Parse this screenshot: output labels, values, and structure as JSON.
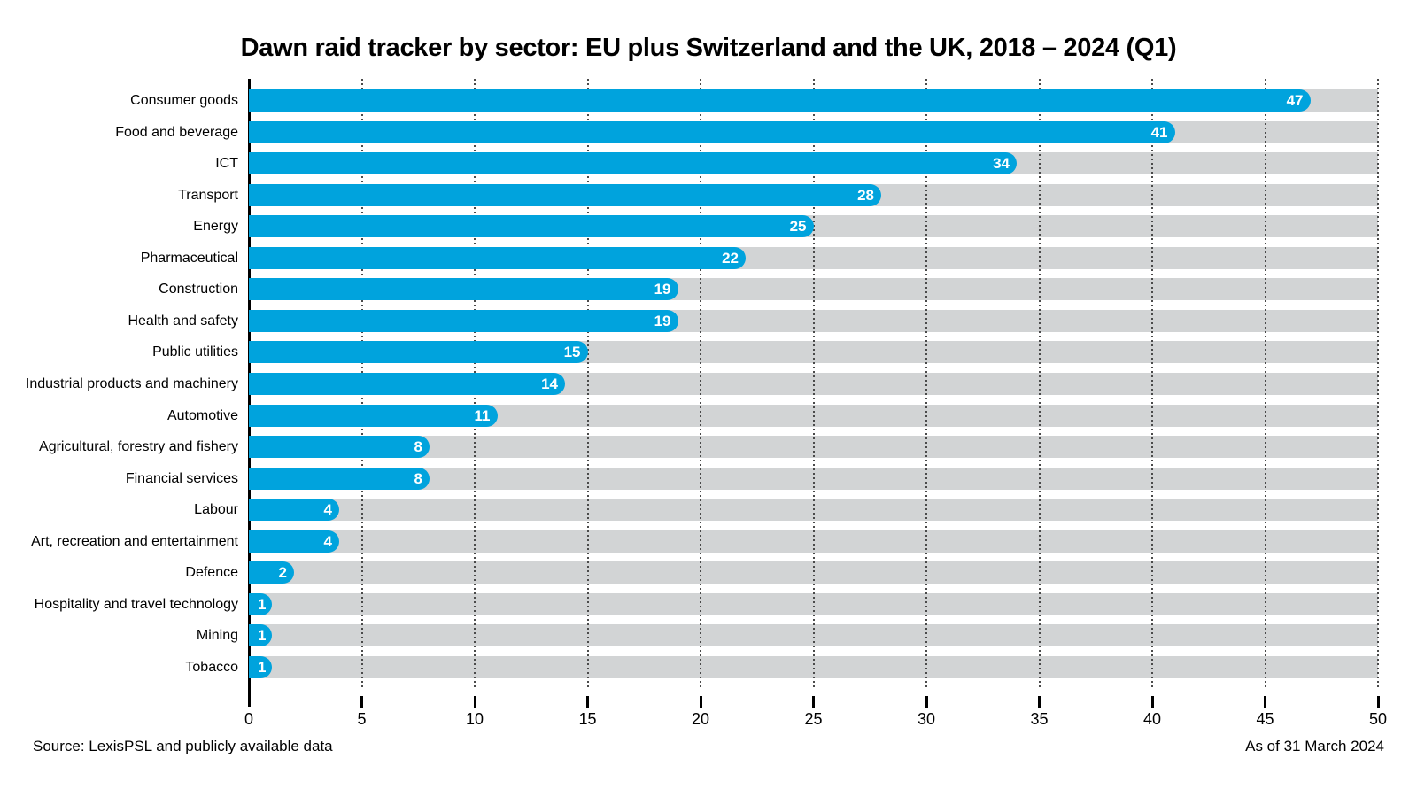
{
  "title": "Dawn raid tracker by sector: EU plus Switzerland and the UK, 2018 – 2024 (Q1)",
  "footer": {
    "source": "Source: LexisPSL and publicly available data",
    "as_of": "As of 31 March 2024"
  },
  "chart_data": {
    "type": "bar",
    "orientation": "horizontal",
    "title": "Dawn raid tracker by sector: EU plus Switzerland and the UK, 2018 – 2024 (Q1)",
    "categories": [
      "Consumer goods",
      "Food and beverage",
      "ICT",
      "Transport",
      "Energy",
      "Pharmaceutical",
      "Construction",
      "Health and safety",
      "Public utilities",
      "Industrial products and machinery",
      "Automotive",
      "Agricultural, forestry and fishery",
      "Financial services",
      "Labour",
      "Art, recreation and entertainment",
      "Defence",
      "Hospitality and travel technology",
      "Mining",
      "Tobacco"
    ],
    "values": [
      47,
      41,
      34,
      28,
      25,
      22,
      19,
      19,
      15,
      14,
      11,
      8,
      8,
      4,
      4,
      2,
      1,
      1,
      1
    ],
    "xlabel": "",
    "ylabel": "",
    "xlim": [
      0,
      50
    ],
    "xticks": [
      0,
      5,
      10,
      15,
      20,
      25,
      30,
      35,
      40,
      45,
      50
    ],
    "grid": "dotted vertical gridlines at each x tick, behind bars",
    "legend": "none",
    "bar_color": "#00A3DD",
    "track_color": "#D2D4D5",
    "value_label_color": "#FFFFFF",
    "value_labels": "white bold numbers inside right end of each bar"
  }
}
